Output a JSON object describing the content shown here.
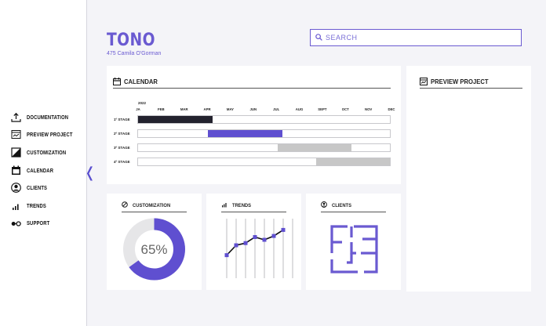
{
  "app": {
    "title": "TONO",
    "subtitle": "475 Camila O'Gorman"
  },
  "search": {
    "placeholder": "SEARCH"
  },
  "sidebar": {
    "items": [
      {
        "label": "Documentation",
        "icon": "upload-icon"
      },
      {
        "label": "Preview project",
        "icon": "preview-icon"
      },
      {
        "label": "Customization",
        "icon": "customization-icon"
      },
      {
        "label": "Calendar",
        "icon": "calendar-icon"
      },
      {
        "label": "Clients",
        "icon": "user-icon"
      },
      {
        "label": "Trends",
        "icon": "bar-chart-icon"
      },
      {
        "label": "Support",
        "icon": "support-icon"
      }
    ],
    "collapse_glyph": "❬"
  },
  "calendar": {
    "title": "CALENDAR",
    "year": "2022",
    "months": [
      "JA",
      "FEB",
      "MAR",
      "APR",
      "MAY",
      "JUN",
      "JUL",
      "AUG",
      "SEPT",
      "OCT",
      "NOV",
      "DEC"
    ],
    "stages": [
      {
        "label": "1º STAGE",
        "start": 0.0,
        "end": 0.295,
        "color": "#23222e"
      },
      {
        "label": "2º STAGE",
        "start": 0.278,
        "end": 0.573,
        "color": "#5f4fd0"
      },
      {
        "label": "3º STAGE",
        "start": 0.554,
        "end": 0.848,
        "color": "#c7c7c7"
      },
      {
        "label": "4º STAGE",
        "start": 0.708,
        "end": 1.0,
        "color": "#c7c7c7"
      }
    ]
  },
  "customization": {
    "title": "CUSTOMIZATION",
    "percent_label": "65%",
    "value": 0.65
  },
  "trends": {
    "title": "TRENDS",
    "points": [
      0.12,
      0.3,
      0.34,
      0.45,
      0.4,
      0.47,
      0.58
    ]
  },
  "clients": {
    "title": "CLIENTS"
  },
  "preview": {
    "title": "PREVIEW PROJECT"
  },
  "colors": {
    "accent": "#6a5ad1",
    "dark": "#23222e",
    "grey": "#c7c7c7"
  }
}
